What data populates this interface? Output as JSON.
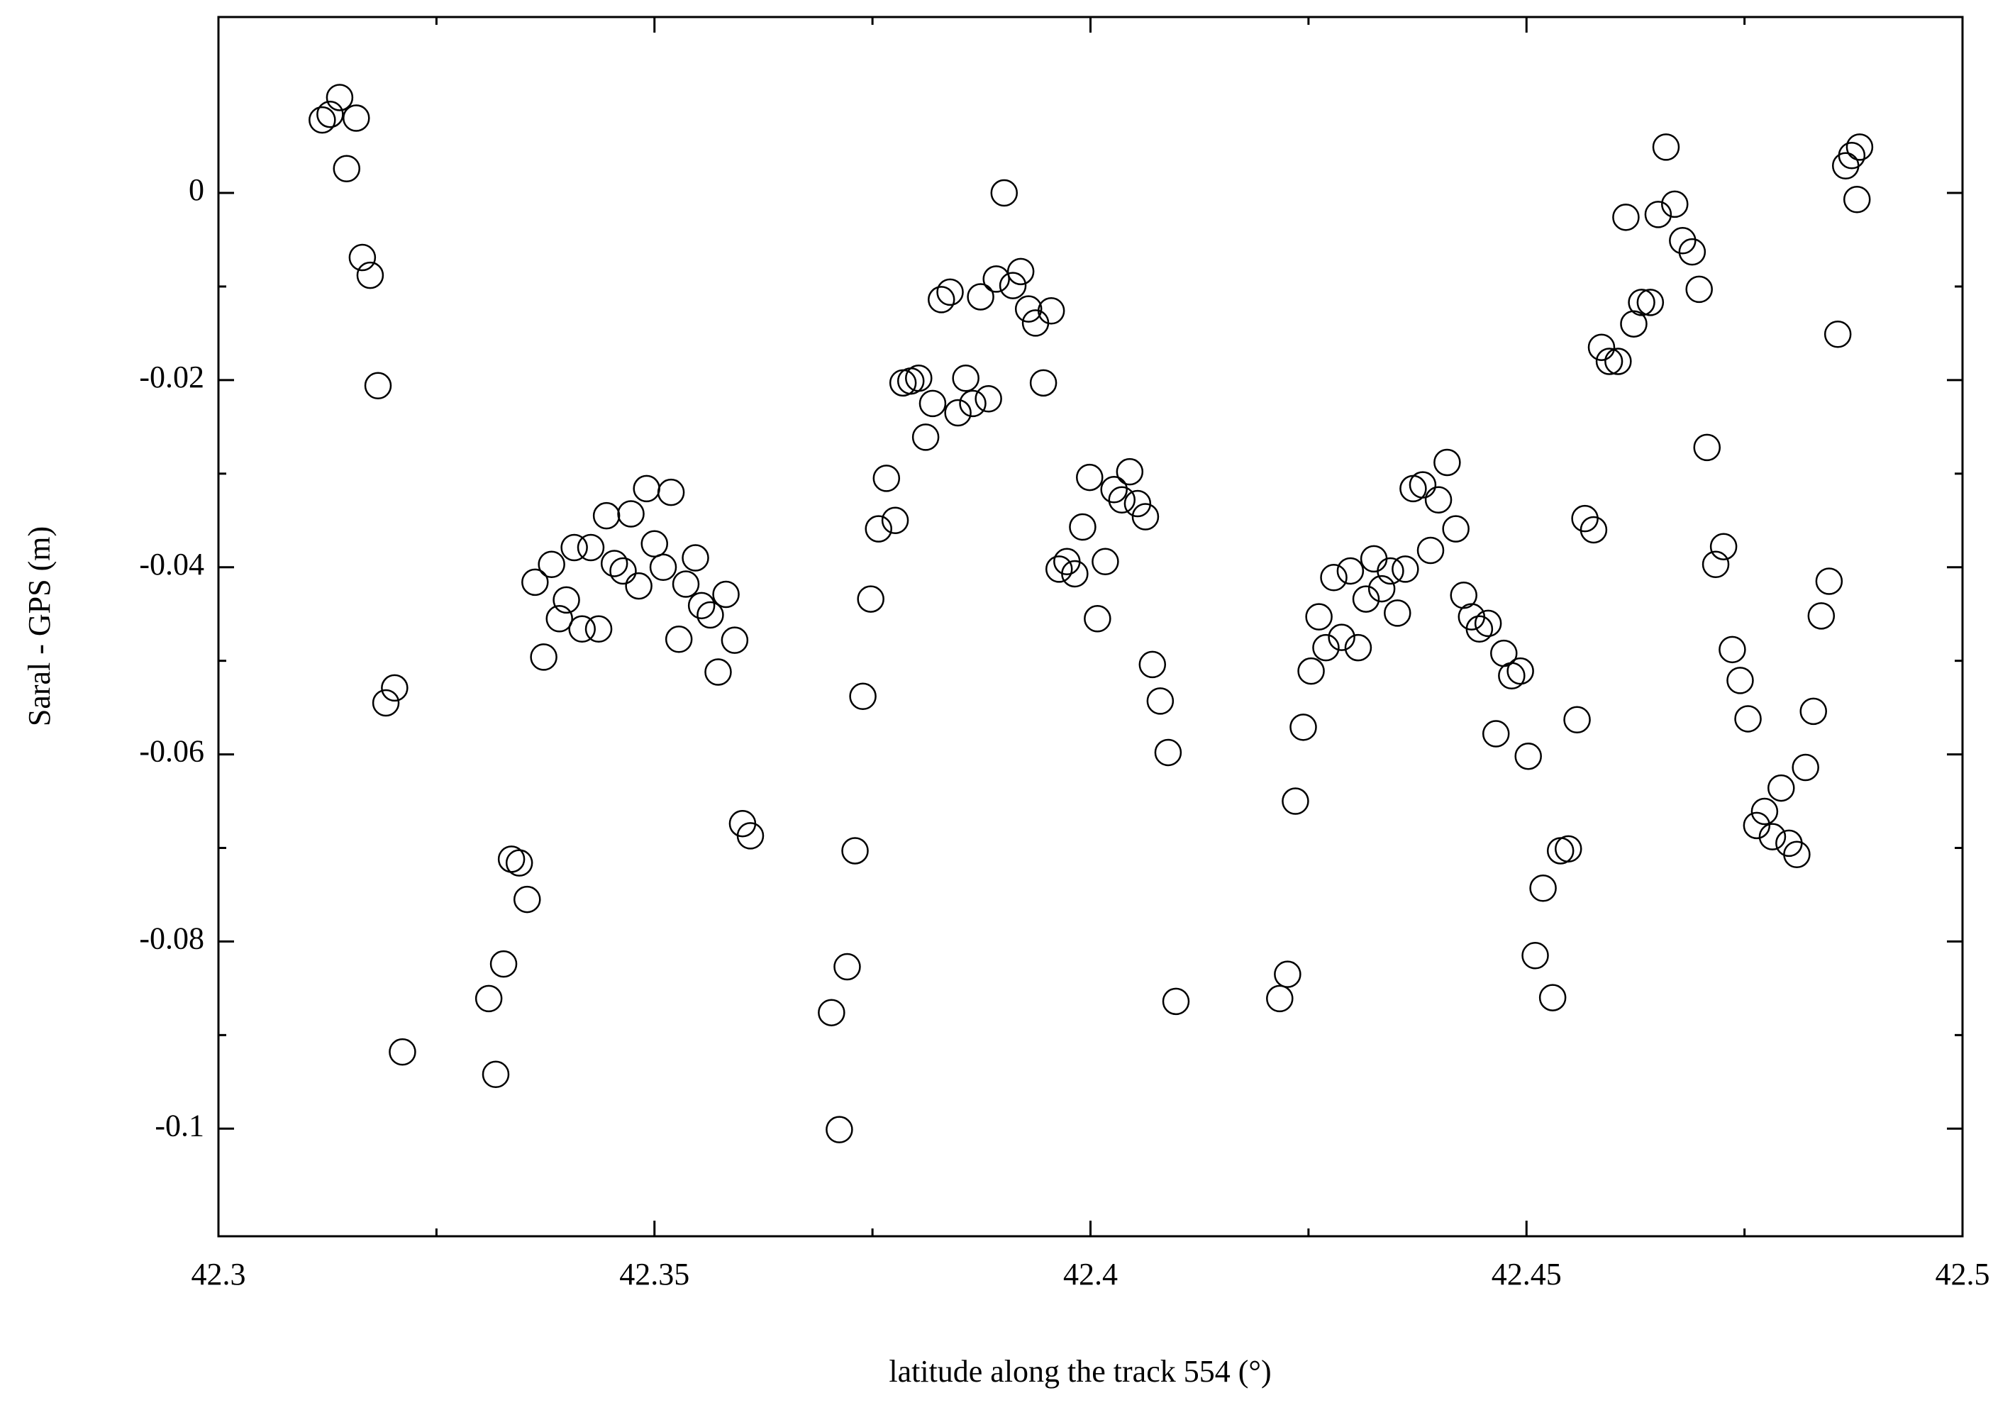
{
  "chart_data": {
    "type": "scatter",
    "x_label": "latitude along the track 554 (°)",
    "y_label": "Saral - GPS (m)",
    "xlim": [
      42.3,
      42.5
    ],
    "xticks": [
      42.3,
      42.35,
      42.4,
      42.45,
      42.5
    ],
    "ylim": [
      -0.1115,
      0.0188
    ],
    "yticks": [
      -0.1,
      -0.08,
      -0.06,
      -0.04,
      -0.02,
      0
    ],
    "marker": "open-circle",
    "color": "#000000",
    "x": [
      42.3119,
      42.3128,
      42.3139,
      42.3158,
      42.3147,
      42.3165,
      42.3174,
      42.3183,
      42.3192,
      42.3202,
      42.3211,
      42.331,
      42.3318,
      42.3327,
      42.3336,
      42.3345,
      42.3354,
      42.3363,
      42.3373,
      42.3382,
      42.3391,
      42.3399,
      42.3408,
      42.3417,
      42.3427,
      42.3436,
      42.3445,
      42.3454,
      42.3464,
      42.3473,
      42.3482,
      42.3491,
      42.35,
      42.351,
      42.3519,
      42.3528,
      42.3536,
      42.3547,
      42.3554,
      42.3564,
      42.3573,
      42.3582,
      42.3592,
      42.3601,
      42.361,
      42.3703,
      42.3712,
      42.3721,
      42.373,
      42.3739,
      42.3748,
      42.3757,
      42.3766,
      42.3776,
      42.3785,
      42.3794,
      42.3803,
      42.3811,
      42.3819,
      42.3829,
      42.3839,
      42.3848,
      42.3857,
      42.3865,
      42.3874,
      42.3883,
      42.3892,
      42.3901,
      42.3911,
      42.392,
      42.3929,
      42.3937,
      42.3946,
      42.3955,
      42.3964,
      42.3973,
      42.3982,
      42.3991,
      42.3999,
      42.4008,
      42.4017,
      42.4027,
      42.4036,
      42.4045,
      42.4054,
      42.4063,
      42.4071,
      42.408,
      42.4089,
      42.4098,
      42.4217,
      42.4226,
      42.4235,
      42.4244,
      42.4253,
      42.4262,
      42.427,
      42.4279,
      42.4288,
      42.4298,
      42.4307,
      42.4316,
      42.4325,
      42.4334,
      42.4344,
      42.4352,
      42.4361,
      42.437,
      42.4381,
      42.439,
      42.4399,
      42.4409,
      42.4419,
      42.4428,
      42.4437,
      42.4446,
      42.4456,
      42.4465,
      42.4474,
      42.4483,
      42.4493,
      42.4502,
      42.451,
      42.4519,
      42.453,
      42.4539,
      42.4548,
      42.4558,
      42.4567,
      42.4577,
      42.4586,
      42.4595,
      42.4605,
      42.4614,
      42.4623,
      42.4632,
      42.4642,
      42.4651,
      42.466,
      42.467,
      42.4679,
      42.469,
      42.4698,
      42.4707,
      42.4717,
      42.4726,
      42.4736,
      42.4745,
      42.4754,
      42.4764,
      42.4773,
      42.4782,
      42.4792,
      42.4801,
      42.481,
      42.482,
      42.4829,
      42.4838,
      42.4847,
      42.4857,
      42.4866,
      42.4873,
      42.4882,
      42.4879
    ],
    "values": [
      0.0078,
      0.0084,
      0.0102,
      0.008,
      0.0026,
      -0.0069,
      -0.0088,
      -0.0206,
      -0.0545,
      -0.0529,
      -0.0918,
      -0.0861,
      -0.0942,
      -0.0824,
      -0.0712,
      -0.0716,
      -0.0755,
      -0.0416,
      -0.0496,
      -0.0397,
      -0.0455,
      -0.0435,
      -0.0379,
      -0.0466,
      -0.0379,
      -0.0466,
      -0.0345,
      -0.0396,
      -0.0404,
      -0.0343,
      -0.042,
      -0.0316,
      -0.0375,
      -0.04,
      -0.032,
      -0.0477,
      -0.0418,
      -0.039,
      -0.0441,
      -0.0451,
      -0.0512,
      -0.0429,
      -0.0478,
      -0.0674,
      -0.0687,
      -0.0876,
      -0.1001,
      -0.0827,
      -0.0703,
      -0.0538,
      -0.0434,
      -0.0359,
      -0.0305,
      -0.035,
      -0.0203,
      -0.0201,
      -0.0198,
      -0.0261,
      -0.0225,
      -0.0114,
      -0.0106,
      -0.0235,
      -0.0198,
      -0.0225,
      -0.0111,
      -0.022,
      -0.0092,
      0,
      -0.0099,
      -0.0084,
      -0.0124,
      -0.0139,
      -0.0203,
      -0.0126,
      -0.0402,
      -0.0394,
      -0.0407,
      -0.0357,
      -0.0304,
      -0.0455,
      -0.0394,
      -0.0317,
      -0.0328,
      -0.0298,
      -0.0332,
      -0.0346,
      -0.0504,
      -0.0543,
      -0.0598,
      -0.0864,
      -0.0861,
      -0.0835,
      -0.065,
      -0.0571,
      -0.0511,
      -0.0453,
      -0.0486,
      -0.0411,
      -0.0475,
      -0.0404,
      -0.0486,
      -0.0434,
      -0.0391,
      -0.0423,
      -0.0404,
      -0.0449,
      -0.0402,
      -0.0316,
      -0.0312,
      -0.0382,
      -0.0328,
      -0.0288,
      -0.0359,
      -0.043,
      -0.0453,
      -0.0466,
      -0.046,
      -0.0578,
      -0.0492,
      -0.0516,
      -0.0511,
      -0.0602,
      -0.0815,
      -0.0743,
      -0.086,
      -0.0703,
      -0.0701,
      -0.0563,
      -0.0348,
      -0.036,
      -0.0165,
      -0.018,
      -0.018,
      -0.0026,
      -0.014,
      -0.0117,
      -0.0117,
      -0.0023,
      0.0049,
      -0.0012,
      -0.0051,
      -0.0063,
      -0.0103,
      -0.0272,
      -0.0397,
      -0.0378,
      -0.0488,
      -0.0521,
      -0.0562,
      -0.0676,
      -0.0661,
      -0.0688,
      -0.0636,
      -0.0695,
      -0.0707,
      -0.0614,
      -0.0554,
      -0.0452,
      -0.0415,
      -0.0151,
      0.0029,
      0.004,
      0.0049,
      -0.0007
    ]
  }
}
